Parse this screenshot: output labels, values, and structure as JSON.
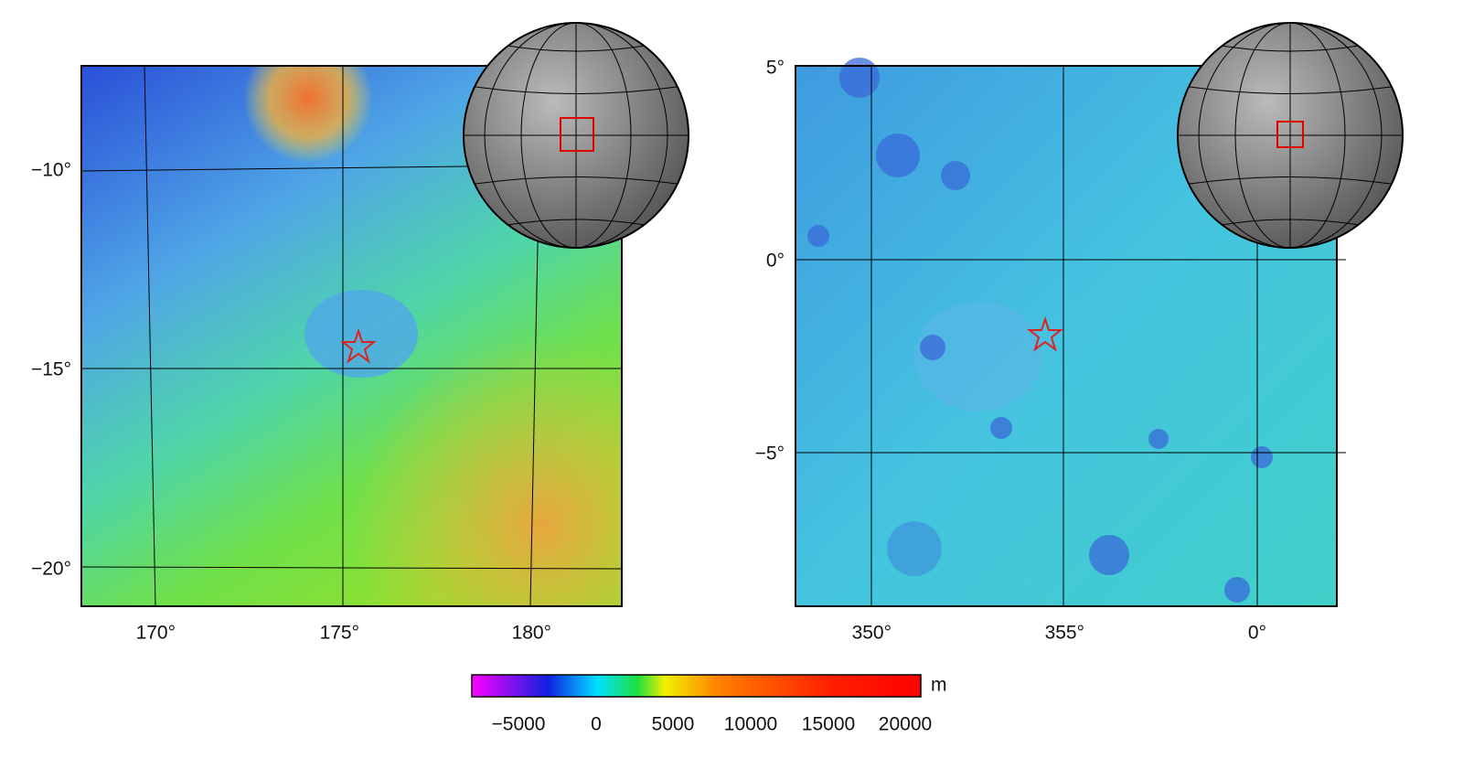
{
  "maps": [
    {
      "lon_ticks": [
        "170°",
        "175°",
        "180°"
      ],
      "lat_ticks": [
        "−10°",
        "−15°",
        "−20°"
      ]
    },
    {
      "lon_ticks": [
        "350°",
        "355°",
        "0°"
      ],
      "lat_ticks": [
        "5°",
        "0°",
        "−5°"
      ]
    }
  ],
  "colorbar": {
    "unit": "m",
    "ticks": [
      "−5000",
      "0",
      "5000",
      "10000",
      "15000",
      "20000"
    ]
  }
}
